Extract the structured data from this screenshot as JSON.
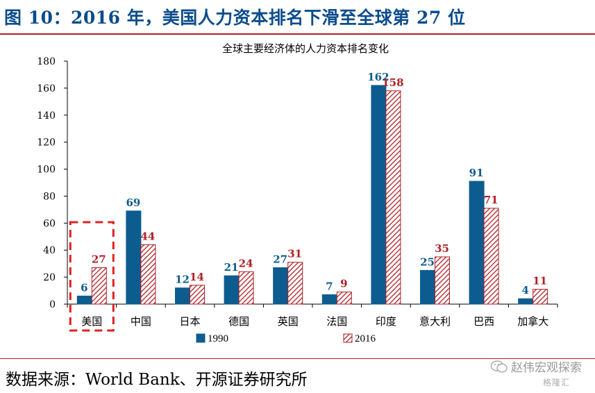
{
  "header": {
    "title": "图 10：2016 年，美国人力资本排名下滑至全球第 27 位"
  },
  "footer": {
    "source": "数据来源：World Bank、开源证券研究所",
    "watermark": "赵伟宏观探索",
    "watermark_sub": "格隆汇",
    "watermark_icon": "wechat-icon"
  },
  "colors": {
    "accent_rule": "#b01f24",
    "title_blue": "#0a4c8c",
    "series_1990": "#0d5c8f",
    "series_2016": "#b01f24",
    "highlight_box": "#e02020"
  },
  "chart_data": {
    "type": "bar",
    "title": "全球主要经济体的人力资本排名变化",
    "categories": [
      "美国",
      "中国",
      "日本",
      "德国",
      "英国",
      "法国",
      "印度",
      "意大利",
      "巴西",
      "加拿大"
    ],
    "series": [
      {
        "name": "1990",
        "values": [
          6,
          69,
          12,
          21,
          27,
          7,
          162,
          25,
          91,
          4
        ]
      },
      {
        "name": "2016",
        "values": [
          27,
          44,
          14,
          24,
          31,
          9,
          158,
          35,
          71,
          11
        ]
      }
    ],
    "ylim": [
      0,
      180
    ],
    "yticks": [
      0,
      20,
      40,
      60,
      80,
      100,
      120,
      140,
      160,
      180
    ],
    "xlabel": "",
    "ylabel": "",
    "grid": false,
    "legend_position": "bottom",
    "highlight_category": "美国"
  }
}
